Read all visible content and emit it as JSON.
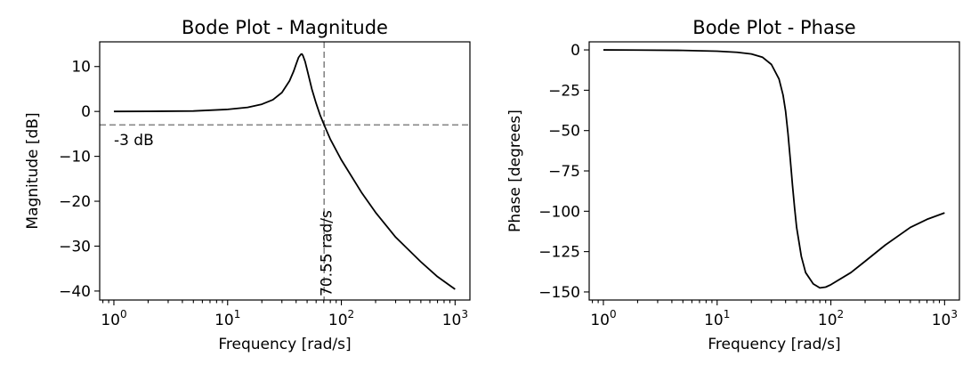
{
  "chart_data": [
    {
      "type": "line",
      "title": "Bode Plot - Magnitude",
      "xlabel": "Frequency [rad/s]",
      "ylabel": "Magnitude [dB]",
      "xscale": "log",
      "xlim": [
        0.75,
        1350
      ],
      "ylim": [
        -42,
        15.5
      ],
      "xticks": [
        1,
        10,
        100,
        1000
      ],
      "xtick_labels": [
        {
          "base": "10",
          "exp": "0"
        },
        {
          "base": "10",
          "exp": "1"
        },
        {
          "base": "10",
          "exp": "2"
        },
        {
          "base": "10",
          "exp": "3"
        }
      ],
      "yticks": [
        10,
        0,
        -10,
        -20,
        -30,
        -40
      ],
      "ytick_labels": [
        "10",
        "0",
        "−10",
        "−20",
        "−30",
        "−40"
      ],
      "grid": false,
      "line_color": "#000000",
      "series": [
        {
          "x": [
            1,
            2,
            5,
            10,
            15,
            20,
            25,
            30,
            35,
            38,
            40,
            42,
            44,
            45,
            46,
            48,
            50,
            55,
            60,
            65,
            70.55,
            80,
            100,
            150,
            200,
            300,
            500,
            700,
            1000
          ],
          "y": [
            0.0,
            0.02,
            0.1,
            0.45,
            0.9,
            1.6,
            2.6,
            4.2,
            6.8,
            8.9,
            10.5,
            12.0,
            12.7,
            12.8,
            12.4,
            11.1,
            9.3,
            5.0,
            1.8,
            -0.8,
            -3.0,
            -6.2,
            -10.8,
            -18.0,
            -22.5,
            -28.0,
            -33.5,
            -36.8,
            -39.6
          ]
        }
      ],
      "hline": {
        "y": -3,
        "color": "#888888"
      },
      "vline": {
        "x": 70.55,
        "color": "#888888"
      },
      "annotations": [
        {
          "text": "-3 dB",
          "x": 1,
          "y": -7.5
        },
        {
          "text": "70.55 rad/s",
          "x": 82,
          "y": -42,
          "rotation": -90
        }
      ]
    },
    {
      "type": "line",
      "title": "Bode Plot - Phase",
      "xlabel": "Frequency [rad/s]",
      "ylabel": "Phase [degrees]",
      "xscale": "log",
      "xlim": [
        0.75,
        1350
      ],
      "ylim": [
        -155,
        5
      ],
      "xticks": [
        1,
        10,
        100,
        1000
      ],
      "xtick_labels": [
        {
          "base": "10",
          "exp": "0"
        },
        {
          "base": "10",
          "exp": "1"
        },
        {
          "base": "10",
          "exp": "2"
        },
        {
          "base": "10",
          "exp": "3"
        }
      ],
      "yticks": [
        0,
        -25,
        -50,
        -75,
        -100,
        -125,
        -150
      ],
      "ytick_labels": [
        "0",
        "−25",
        "−50",
        "−75",
        "−100",
        "−125",
        "−150"
      ],
      "grid": false,
      "line_color": "#000000",
      "series": [
        {
          "x": [
            1,
            2,
            5,
            10,
            15,
            20,
            25,
            30,
            35,
            38,
            40,
            42,
            44,
            45,
            46,
            48,
            50,
            55,
            60,
            70,
            80,
            90,
            100,
            150,
            200,
            300,
            500,
            700,
            1000
          ],
          "y": [
            0,
            -0.1,
            -0.3,
            -0.8,
            -1.5,
            -2.5,
            -4.5,
            -9,
            -18,
            -28,
            -38,
            -52,
            -68,
            -76,
            -84,
            -98,
            -110,
            -128,
            -138,
            -145,
            -147.5,
            -147,
            -145.5,
            -138,
            -131,
            -121,
            -110,
            -105,
            -101
          ]
        }
      ]
    }
  ]
}
